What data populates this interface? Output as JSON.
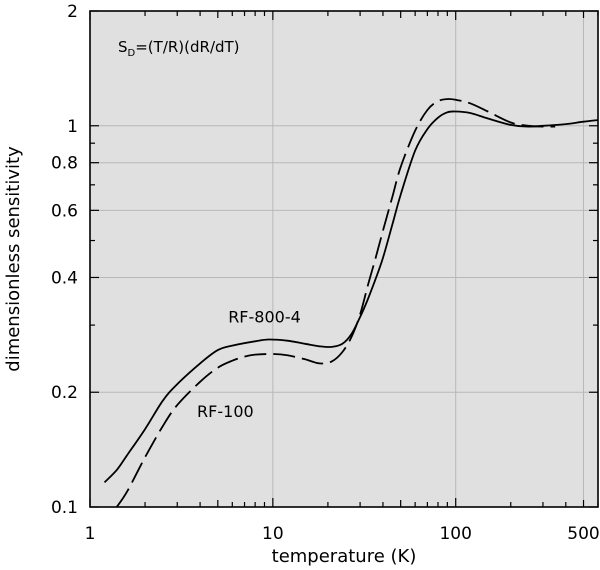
{
  "chart_data": {
    "type": "line",
    "xscale": "log",
    "yscale": "log",
    "xlim": [
      1,
      600
    ],
    "ylim": [
      0.1,
      2
    ],
    "xlabel": "temperature (K)",
    "ylabel": "dimensionless sensitivity",
    "grid": true,
    "x_ticks": [
      {
        "value": 1,
        "label": "1"
      },
      {
        "value": 10,
        "label": "10"
      },
      {
        "value": 100,
        "label": "100"
      },
      {
        "value": 500,
        "label": "500"
      }
    ],
    "y_ticks": [
      {
        "value": 0.1,
        "label": "0.1"
      },
      {
        "value": 0.2,
        "label": "0.2"
      },
      {
        "value": 0.4,
        "label": "0.4"
      },
      {
        "value": 0.6,
        "label": "0.6"
      },
      {
        "value": 0.8,
        "label": "0.8"
      },
      {
        "value": 1,
        "label": "1"
      },
      {
        "value": 2,
        "label": "2"
      }
    ],
    "annotation": {
      "main": "S",
      "sub": "D",
      "rest": "=(T/R)(dR/dT)"
    },
    "series": [
      {
        "name": "RF-800-4",
        "style": "solid",
        "x": [
          1.2,
          1.4,
          1.6,
          2,
          2.5,
          3,
          4,
          5,
          6,
          8,
          9.5,
          12,
          15,
          18,
          21,
          24,
          27,
          30,
          33,
          36,
          40,
          45,
          50,
          60,
          70,
          80,
          90,
          100,
          120,
          150,
          200,
          250,
          300,
          400,
          500,
          600
        ],
        "y": [
          0.116,
          0.125,
          0.137,
          0.16,
          0.19,
          0.21,
          0.238,
          0.258,
          0.265,
          0.272,
          0.275,
          0.273,
          0.268,
          0.264,
          0.263,
          0.268,
          0.285,
          0.315,
          0.35,
          0.39,
          0.45,
          0.55,
          0.66,
          0.86,
          0.98,
          1.05,
          1.085,
          1.09,
          1.08,
          1.045,
          1.005,
          0.995,
          1.0,
          1.01,
          1.025,
          1.035
        ]
      },
      {
        "name": "RF-100",
        "style": "dashed",
        "x": [
          1.4,
          1.6,
          2,
          2.5,
          3,
          4,
          5,
          6,
          7,
          8,
          10,
          12,
          15,
          18,
          21,
          24,
          27,
          30,
          33,
          36,
          40,
          45,
          50,
          60,
          70,
          80,
          90,
          100,
          120,
          150,
          200,
          250,
          300,
          350
        ],
        "y": [
          0.1,
          0.11,
          0.135,
          0.163,
          0.185,
          0.213,
          0.232,
          0.242,
          0.248,
          0.251,
          0.252,
          0.25,
          0.244,
          0.238,
          0.241,
          0.255,
          0.28,
          0.32,
          0.38,
          0.44,
          0.53,
          0.65,
          0.78,
          0.97,
          1.1,
          1.16,
          1.175,
          1.17,
          1.145,
          1.09,
          1.02,
          1.0,
          0.995,
          0.995
        ]
      }
    ],
    "labels": [
      {
        "text": "RF-800-4",
        "x": 9,
        "y": 0.305
      },
      {
        "text": "RF-100",
        "x": 5.5,
        "y": 0.172
      }
    ]
  }
}
